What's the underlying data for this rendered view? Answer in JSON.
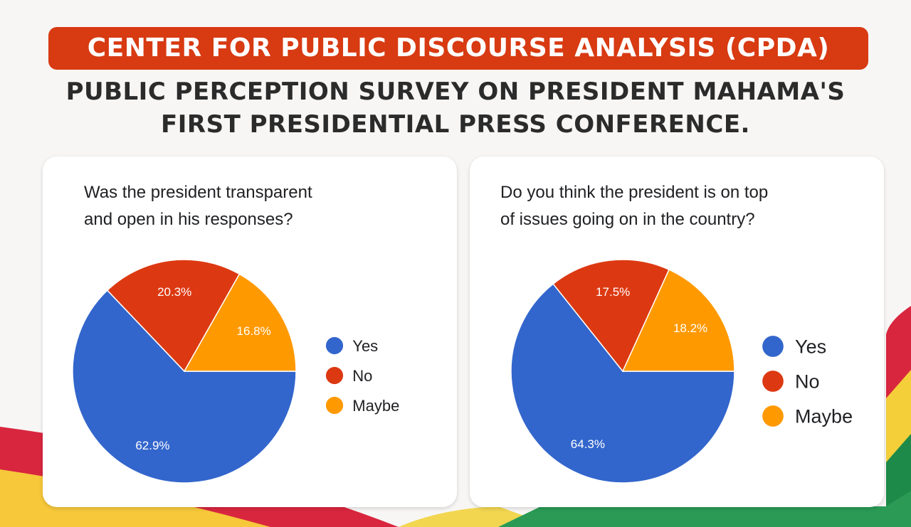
{
  "header": {
    "banner": "CENTER FOR PUBLIC DISCOURSE ANALYSIS (CPDA)",
    "subtitle_line1": "PUBLIC PERCEPTION SURVEY ON PRESIDENT MAHAMA'S",
    "subtitle_line2": "FIRST PRESIDENTIAL PRESS CONFERENCE."
  },
  "colors": {
    "banner": "#d83a12",
    "yes": "#3366cc",
    "no": "#dc3912",
    "maybe": "#ff9900"
  },
  "chart_data": [
    {
      "type": "pie",
      "title_line1": "Was the president transparent",
      "title_line2": "and open in his responses?",
      "categories": [
        "Yes",
        "No",
        "Maybe"
      ],
      "values": [
        62.9,
        20.3,
        16.8
      ],
      "labels": [
        "62.9%",
        "20.3%",
        "16.8%"
      ],
      "legend": "right"
    },
    {
      "type": "pie",
      "title_line1": "Do you think the president is on top",
      "title_line2": "of issues going on in the country?",
      "categories": [
        "Yes",
        "No",
        "Maybe"
      ],
      "values": [
        64.3,
        17.5,
        18.2
      ],
      "labels": [
        "64.3%",
        "17.5%",
        "18.2%"
      ],
      "legend": "right"
    }
  ]
}
